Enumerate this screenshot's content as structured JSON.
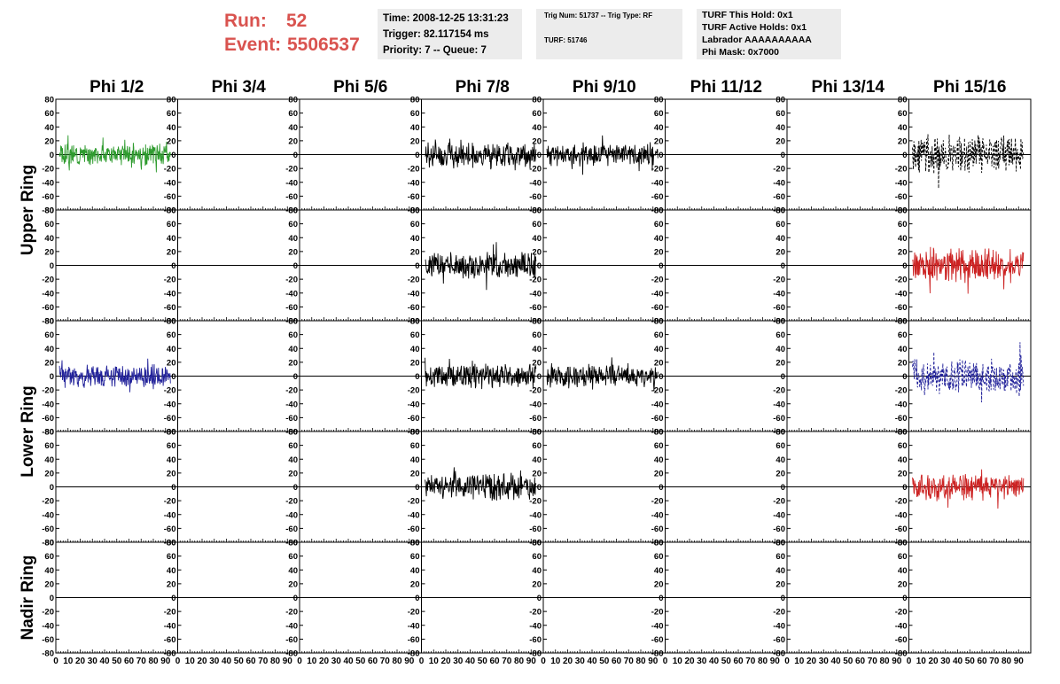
{
  "header": {
    "run_label": "Run:",
    "run_value": "52",
    "event_label": "Event:",
    "event_value": "5506537"
  },
  "info": {
    "time": "Time: 2008-12-25 13:31:23",
    "trigger": "Trigger: 82.117154 ms",
    "priority": "Priority: 7 -- Queue: 7",
    "trig_num": "Trig Num: 51737 -- Trig Type: RF",
    "turf": "TURF: 51746",
    "turf_this_hold": "TURF This Hold: 0x1",
    "turf_active_holds": "TURF Active Holds: 0x1",
    "labrador": "Labrador AAAAAAAAAA",
    "phi_mask": "Phi Mask: 0x7000"
  },
  "chart_data": {
    "type": "line",
    "columns": [
      "Phi 1/2",
      "Phi 3/4",
      "Phi 5/6",
      "Phi 7/8",
      "Phi 9/10",
      "Phi 11/12",
      "Phi 13/14",
      "Phi 15/16"
    ],
    "ring_labels": [
      {
        "label": "Upper Ring",
        "rows": [
          0,
          1
        ]
      },
      {
        "label": "Lower Ring",
        "rows": [
          2,
          3
        ]
      },
      {
        "label": "Nadir Ring",
        "rows": [
          4
        ]
      }
    ],
    "ylim": [
      -80,
      80
    ],
    "yticks": [
      -80,
      -60,
      -40,
      -20,
      0,
      20,
      40,
      60,
      80
    ],
    "xlim": [
      0,
      100
    ],
    "xticks": [
      0,
      10,
      20,
      30,
      40,
      50,
      60,
      70,
      80,
      90
    ],
    "x_axis_labels": "0 10 20 30 40 50 60 70 80 90",
    "panels": [
      {
        "row": 0,
        "col": 0,
        "color": "#2e9b2e",
        "dashed": false,
        "amplitude": 12,
        "seed": 3
      },
      {
        "row": 0,
        "col": 3,
        "color": "#000000",
        "dashed": false,
        "amplitude": 14,
        "seed": 7
      },
      {
        "row": 0,
        "col": 4,
        "color": "#000000",
        "dashed": false,
        "amplitude": 13,
        "seed": 11
      },
      {
        "row": 0,
        "col": 7,
        "color": "#000000",
        "dashed": true,
        "amplitude": 22,
        "seed": 13
      },
      {
        "row": 1,
        "col": 3,
        "color": "#000000",
        "dashed": false,
        "amplitude": 15,
        "seed": 17
      },
      {
        "row": 1,
        "col": 7,
        "color": "#cc2222",
        "dashed": false,
        "amplitude": 20,
        "seed": 19
      },
      {
        "row": 2,
        "col": 0,
        "color": "#22229a",
        "dashed": false,
        "amplitude": 13,
        "seed": 23
      },
      {
        "row": 2,
        "col": 3,
        "color": "#000000",
        "dashed": false,
        "amplitude": 14,
        "seed": 29
      },
      {
        "row": 2,
        "col": 4,
        "color": "#000000",
        "dashed": false,
        "amplitude": 12,
        "seed": 31
      },
      {
        "row": 2,
        "col": 7,
        "color": "#22229a",
        "dashed": true,
        "amplitude": 20,
        "seed": 37
      },
      {
        "row": 3,
        "col": 3,
        "color": "#000000",
        "dashed": false,
        "amplitude": 15,
        "seed": 41
      },
      {
        "row": 3,
        "col": 7,
        "color": "#cc2222",
        "dashed": false,
        "amplitude": 14,
        "seed": 43
      }
    ]
  }
}
